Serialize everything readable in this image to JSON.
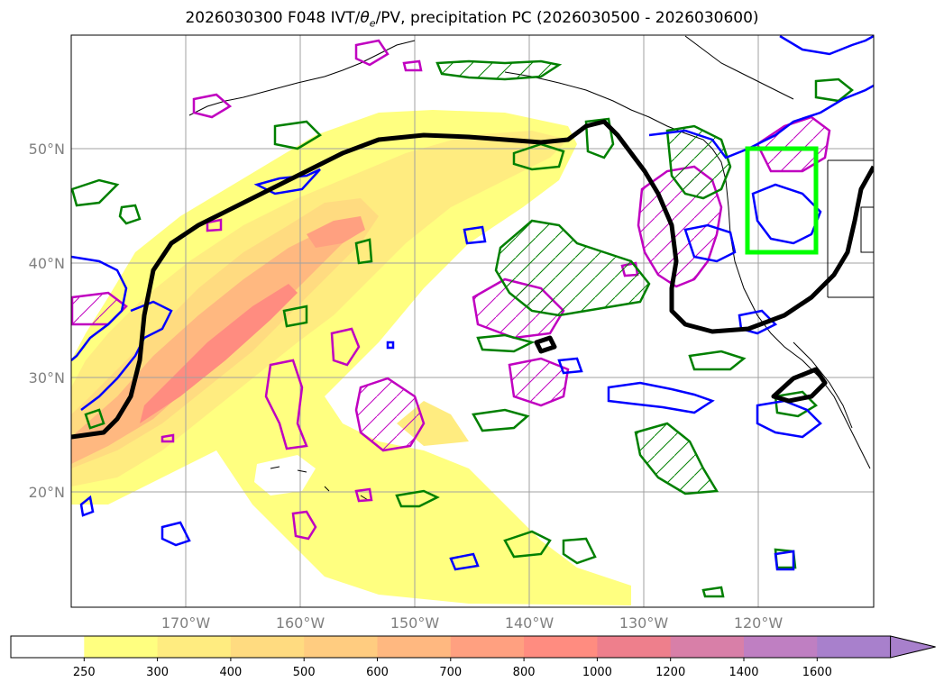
{
  "title_main": "2026030300 F048 IVT/",
  "title_theta": "θ",
  "title_theta_sub": "e",
  "title_rest": "/PV, precipitation PC (2026030500 - 2026030600)",
  "map": {
    "lon_range": [
      -180,
      -110
    ],
    "lat_range": [
      10,
      60
    ],
    "lat_ticks": [
      {
        "value": 50,
        "label": "50°N"
      },
      {
        "value": 40,
        "label": "40°N"
      },
      {
        "value": 30,
        "label": "30°N"
      },
      {
        "value": 20,
        "label": "20°N"
      }
    ],
    "lon_ticks": [
      {
        "value": -170,
        "label": "170°W"
      },
      {
        "value": -160,
        "label": "160°W"
      },
      {
        "value": -150,
        "label": "150°W"
      },
      {
        "value": -140,
        "label": "140°W"
      },
      {
        "value": -130,
        "label": "130°W"
      },
      {
        "value": -120,
        "label": "120°W"
      }
    ],
    "gridlines": true,
    "highlight_box": {
      "lon": [
        -120.8,
        -114.8
      ],
      "lat": [
        41,
        50
      ],
      "color": "#00ff00"
    },
    "contour_colors": {
      "theta_e": "#000000",
      "pv_negative": "#0000ff",
      "pv_positive": "#008000",
      "precip_pc": "#c000c0"
    }
  },
  "colorbar": {
    "levels": [
      "250",
      "300",
      "400",
      "500",
      "600",
      "700",
      "800",
      "1000",
      "1200",
      "1400",
      "1600"
    ],
    "colors": [
      "#ffffff",
      "#ffff80",
      "#ffec80",
      "#ffdb80",
      "#ffcc80",
      "#ffb880",
      "#ffa080",
      "#ff8c80",
      "#ee7f8c",
      "#d87fa8",
      "#bf7fc2",
      "#a880cc"
    ],
    "extend": "max"
  }
}
